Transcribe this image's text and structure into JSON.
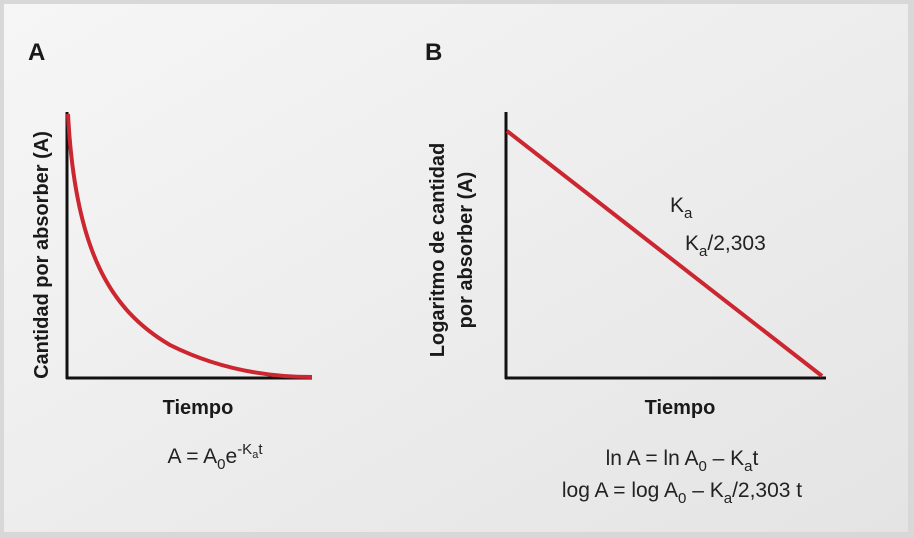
{
  "panels": [
    {
      "label": "A",
      "y_label": [
        "Cantidad por absorber (A)"
      ],
      "x_label": "Tiempo",
      "formula": [
        [
          "A = A",
          "0",
          "e",
          "-K",
          "a",
          "t"
        ]
      ]
    },
    {
      "label": "B",
      "y_label": [
        "Logaritmo de cantidad",
        "por absorber (A)"
      ],
      "x_label": "Tiempo",
      "annotations": [
        [
          "K",
          "a"
        ],
        [
          "K",
          "a",
          "/2,303"
        ]
      ],
      "formula": [
        [
          "ln A = ln A",
          "0",
          " – K",
          "a",
          "t"
        ],
        [
          "log A = log A",
          "0",
          " – K",
          "a",
          "/2,303 t"
        ]
      ]
    }
  ]
}
